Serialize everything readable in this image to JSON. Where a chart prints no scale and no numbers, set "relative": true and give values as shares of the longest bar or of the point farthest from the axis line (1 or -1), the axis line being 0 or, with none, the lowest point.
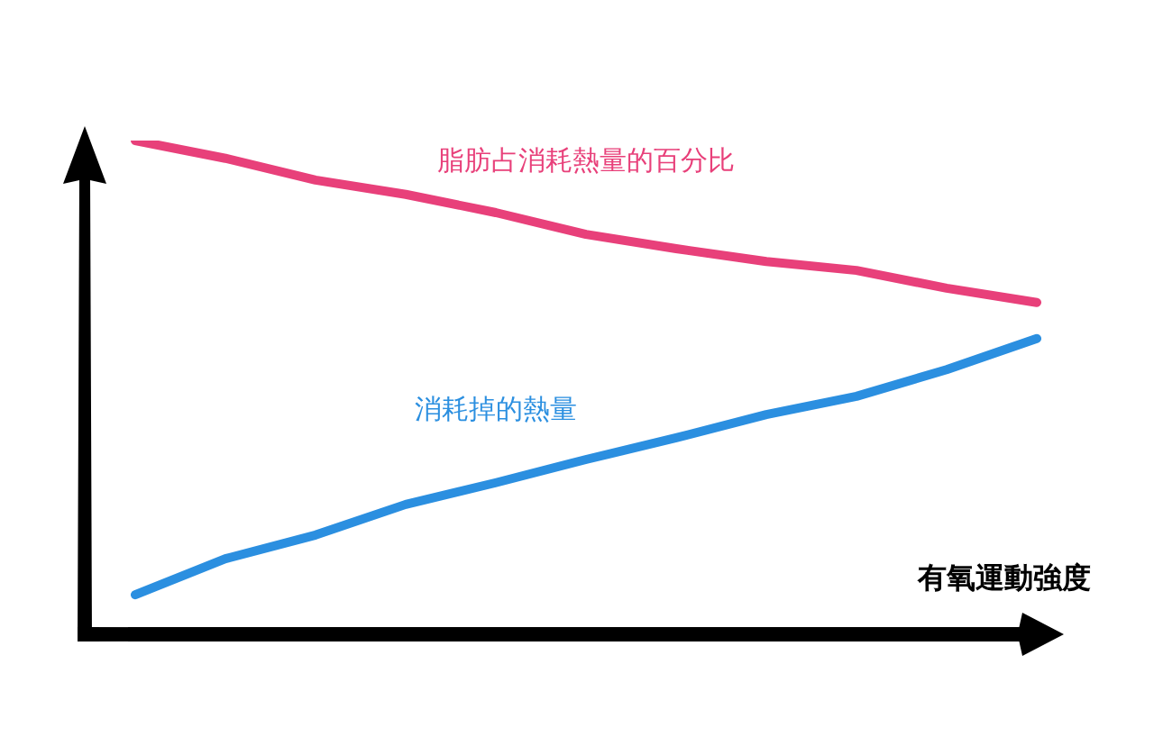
{
  "chart_data": {
    "type": "line",
    "xlabel": "有氧運動強度",
    "relative": true,
    "marker": "none",
    "categories": [
      null,
      null,
      null,
      null,
      null,
      null,
      null,
      null,
      null,
      null,
      null
    ],
    "series": [
      {
        "name": "脂肪占消耗熱量的百分比",
        "color": "#e8407a",
        "values": [
          1,
          0.964,
          0.92,
          0.891,
          0.854,
          0.81,
          0.781,
          0.755,
          0.737,
          0.701,
          0.672
        ]
      },
      {
        "name": "消耗掉的熱量",
        "color": "#2b8fe0",
        "values": [
          0.08,
          0.153,
          0.201,
          0.263,
          0.307,
          0.354,
          0.398,
          0.445,
          0.482,
          0.536,
          0.599
        ]
      }
    ]
  }
}
